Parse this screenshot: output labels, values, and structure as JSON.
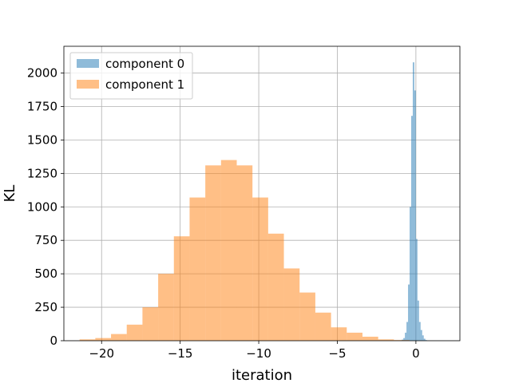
{
  "chart_data": {
    "type": "histogram",
    "title": "",
    "xlabel": "iteration",
    "ylabel": "KL",
    "xlim": [
      -22.4,
      2.8
    ],
    "ylim": [
      0,
      2200
    ],
    "xticks": [
      -20,
      -15,
      -10,
      -5,
      0
    ],
    "xtick_labels": [
      "−20",
      "−15",
      "−10",
      "−5",
      "0"
    ],
    "yticks": [
      0,
      250,
      500,
      750,
      1000,
      1250,
      1500,
      1750,
      2000
    ],
    "ytick_labels": [
      "0",
      "250",
      "500",
      "750",
      "1000",
      "1250",
      "1500",
      "1750",
      "2000"
    ],
    "grid": true,
    "legend_position": "top-left",
    "series": [
      {
        "name": "component 0",
        "color": "#1f77b4",
        "opacity": 0.5,
        "bin_start": -1.0,
        "bin_width": 0.1,
        "counts": [
          3,
          8,
          20,
          60,
          140,
          420,
          1000,
          1680,
          2080,
          1870,
          760,
          300,
          140,
          80,
          40,
          15,
          5
        ]
      },
      {
        "name": "component 1",
        "color": "#ff7f0e",
        "opacity": 0.5,
        "bin_start": -21.4,
        "bin_width": 1.0,
        "counts": [
          10,
          20,
          50,
          120,
          250,
          500,
          780,
          1070,
          1310,
          1350,
          1310,
          1070,
          800,
          540,
          360,
          210,
          100,
          60,
          30,
          10,
          5
        ]
      }
    ]
  }
}
